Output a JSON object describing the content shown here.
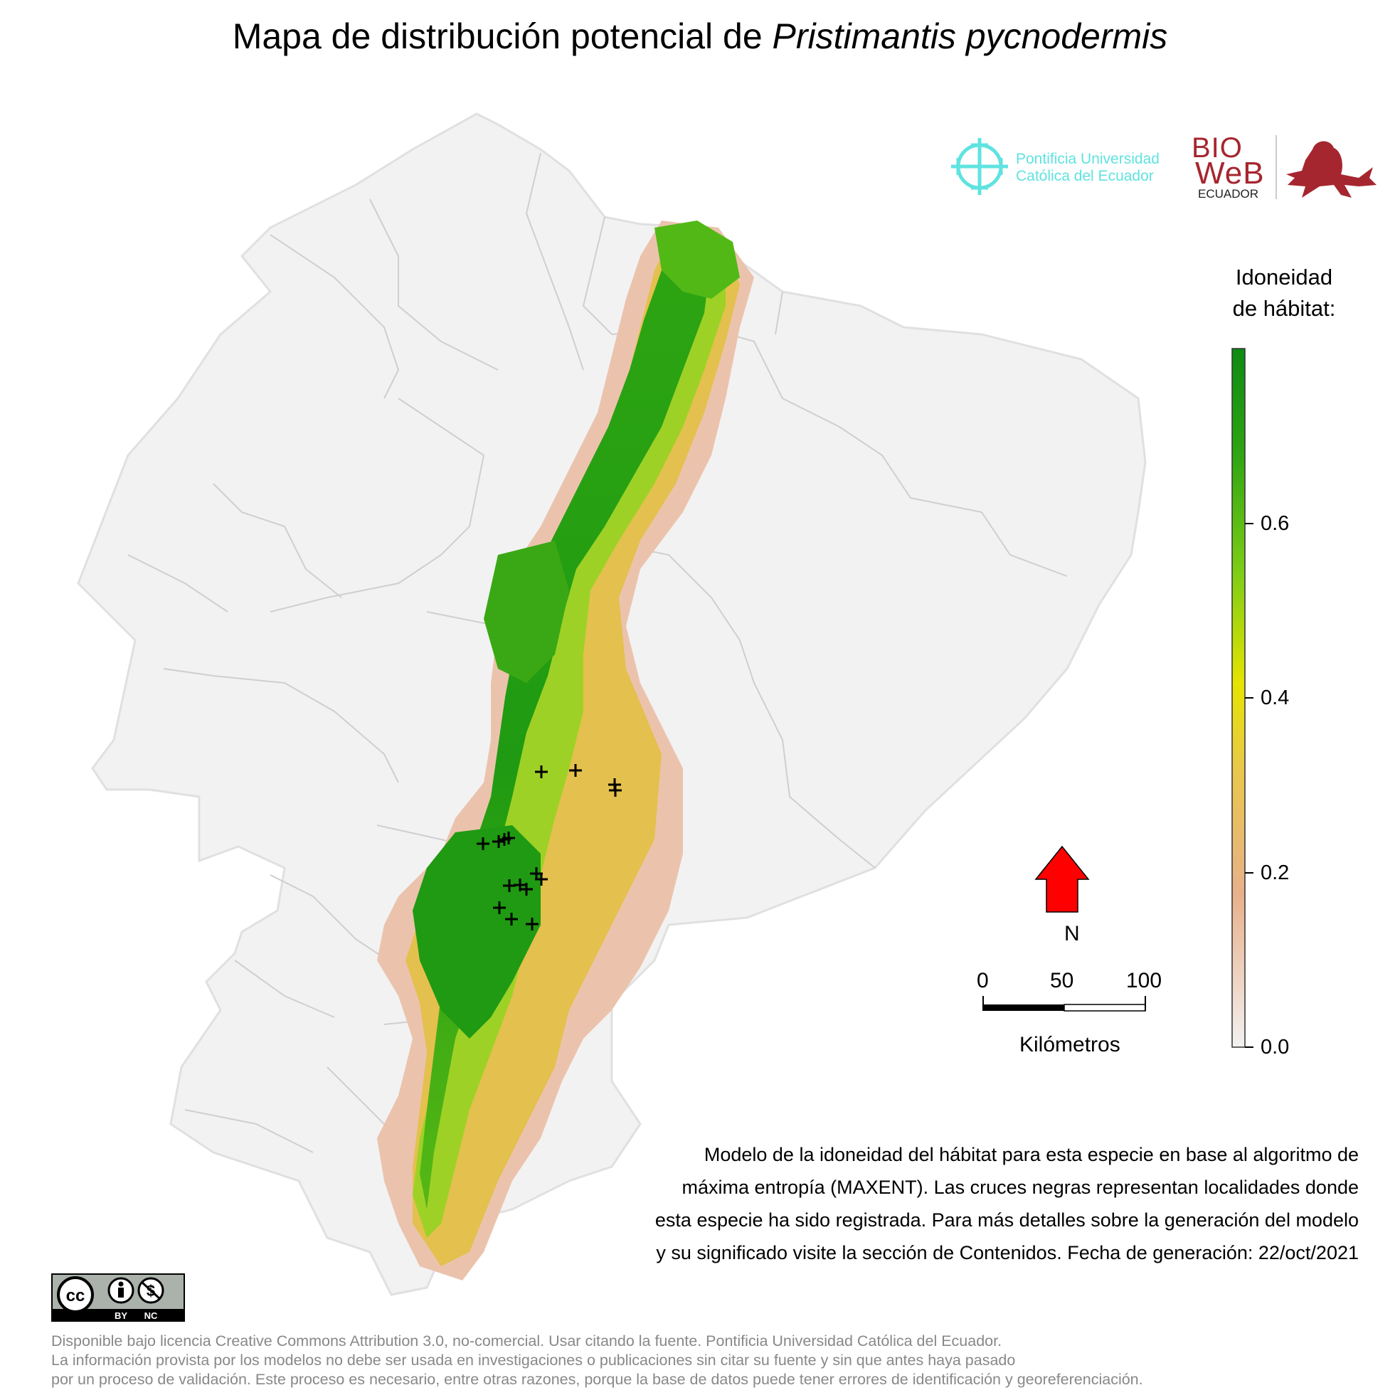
{
  "title": {
    "prefix": "Mapa de distribución potencial de ",
    "species": "Pristimantis pycnodermis"
  },
  "logos": {
    "puce_line1": "Pontificia Universidad",
    "puce_line2": "Católica del Ecuador",
    "bioweb_line1": "BIO",
    "bioweb_line2": "WeB",
    "bioweb_line3": "ECUADOR"
  },
  "legend": {
    "title_line1": "Idoneidad",
    "title_line2": "de hábitat:",
    "ticks": [
      "0.0",
      "0.2",
      "0.4",
      "0.6"
    ],
    "colors": {
      "low": "#f2f2f2",
      "mid_low": "#e8b08a",
      "mid": "#e9e000",
      "high": "#2e9c12",
      "top": "#0d8a12"
    }
  },
  "north_arrow": {
    "label": "N",
    "color": "#ff0000"
  },
  "scale_bar": {
    "ticks": [
      "0",
      "50",
      "100"
    ],
    "unit": "Kilómetros"
  },
  "description": {
    "line1": "Modelo de la idoneidad del hábitat para esta especie en base al algoritmo de",
    "line2": "máxima entropía (MAXENT). Las cruces negras representan localidades donde",
    "line3": "esta especie ha sido registrada. Para más detalles sobre la generación del modelo",
    "line4": "y su significado visite la sección de Contenidos. Fecha de generación: 22/oct/2021"
  },
  "cc_badge": {
    "by": "BY",
    "nc": "NC"
  },
  "license": {
    "line1": "Disponible bajo licencia Creative Commons Attribution 3.0, no-comercial. Usar citando la fuente. Pontificia Universidad Católica del Ecuador.",
    "line2": "La información provista por los modelos no debe ser usada en investigaciones o publicaciones sin citar su fuente y sin que antes haya pasado",
    "line3": "por un proceso de validación. Este proceso es necesario, entre otras razones, porque la base de datos puede tener errores de identificación y georeferenciación."
  },
  "map": {
    "land_color": "#f2f2f2",
    "border_color": "#c8c8c8",
    "record_marker_color": "#000000"
  }
}
